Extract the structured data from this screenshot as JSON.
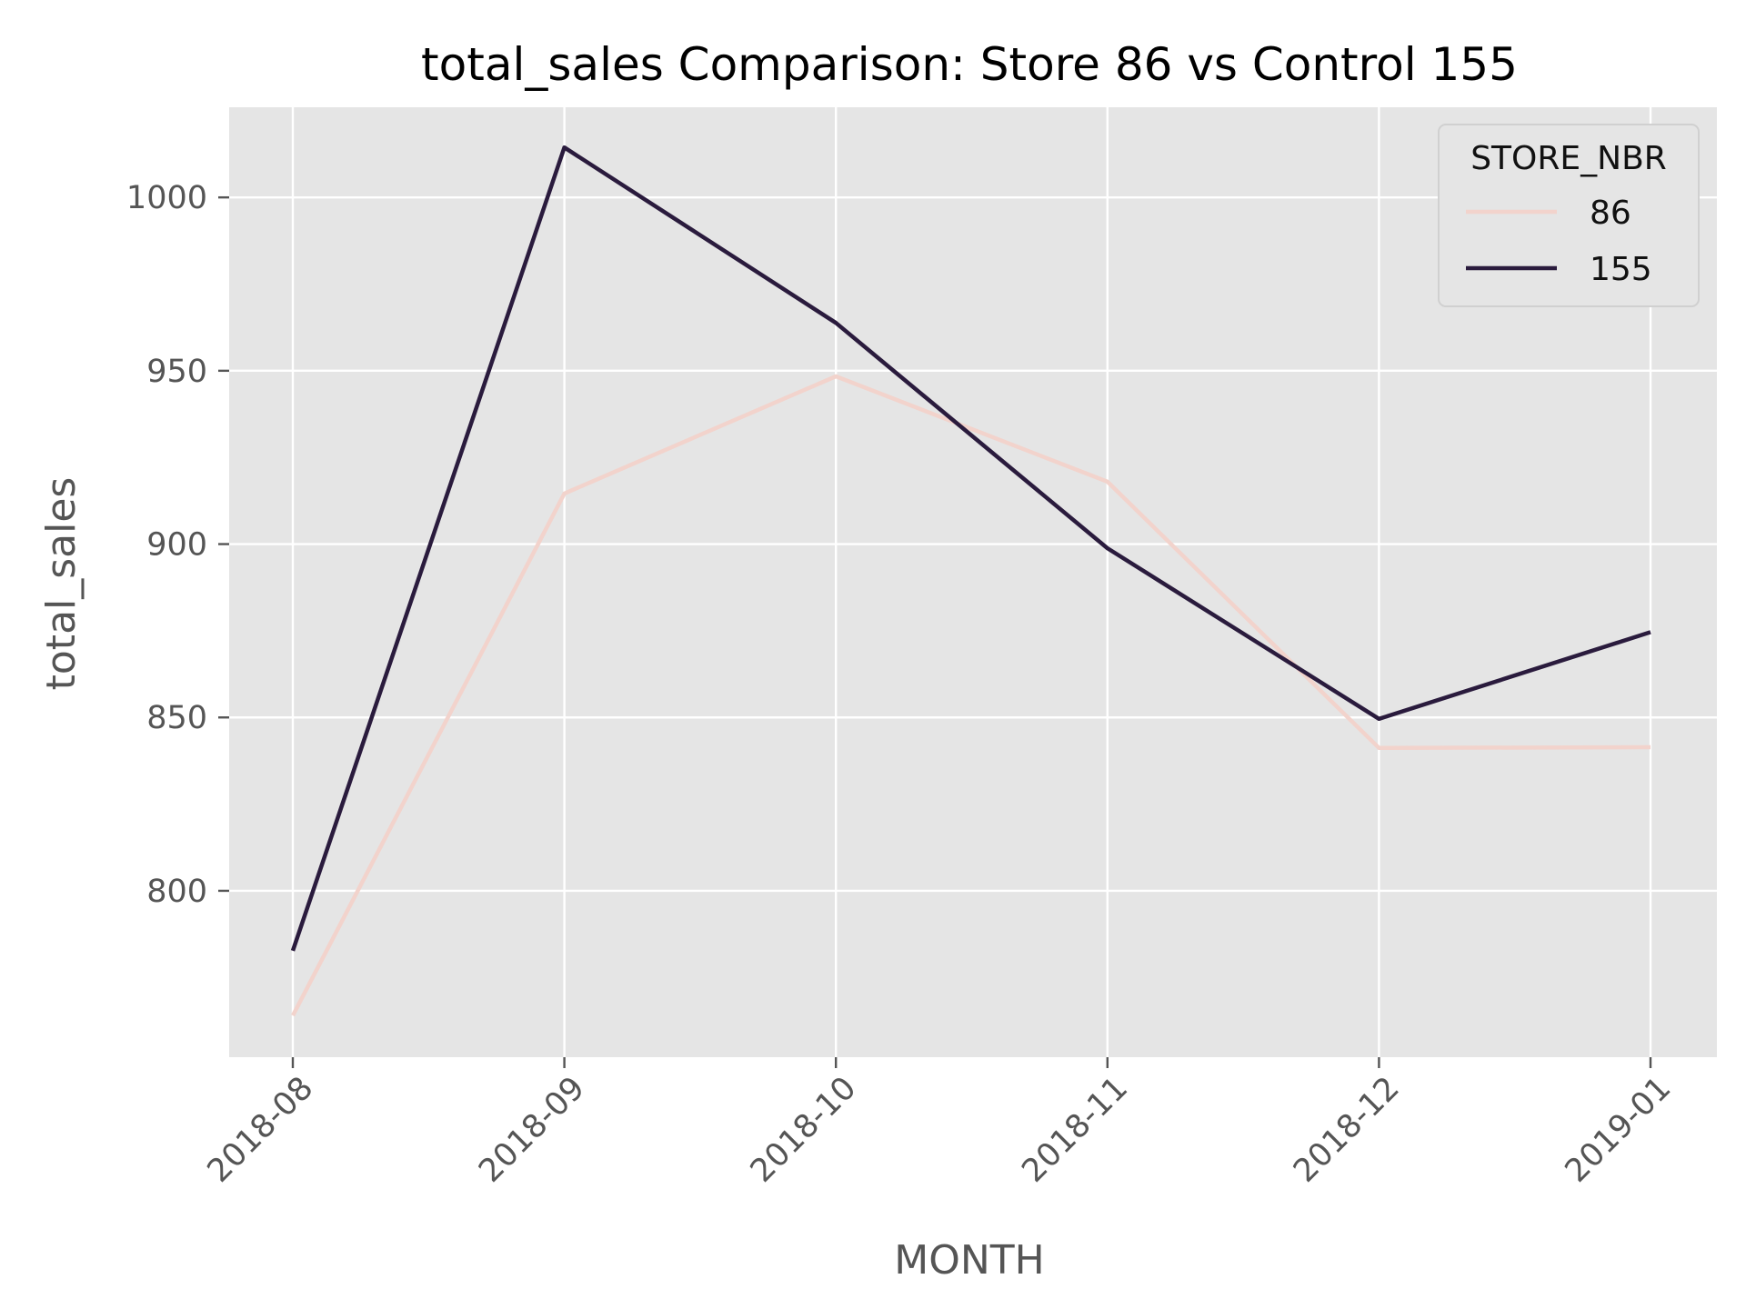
{
  "chart_data": {
    "type": "line",
    "title": "total_sales Comparison: Store 86 vs Control 155",
    "xlabel": "MONTH",
    "ylabel": "total_sales",
    "x": [
      "2018-08",
      "2018-09",
      "2018-10",
      "2018-11",
      "2018-12",
      "2019-01"
    ],
    "ylim": [
      752,
      1026
    ],
    "yticks": [
      800,
      850,
      900,
      950,
      1000
    ],
    "grid": true,
    "legend": {
      "title": "STORE_NBR",
      "placement": "top-right"
    },
    "series": [
      {
        "name": "86",
        "values": [
          764.0,
          914.6,
          948.4,
          918.0,
          841.2,
          841.4
        ],
        "color": "#f2d3cc"
      },
      {
        "name": "155",
        "values": [
          782.7,
          1014.4,
          963.8,
          898.8,
          849.6,
          874.6
        ],
        "color": "#2a1b3d"
      }
    ],
    "colors": {
      "plot_background": "#e5e5e5",
      "grid": "#ffffff",
      "tick": "#555555"
    }
  }
}
